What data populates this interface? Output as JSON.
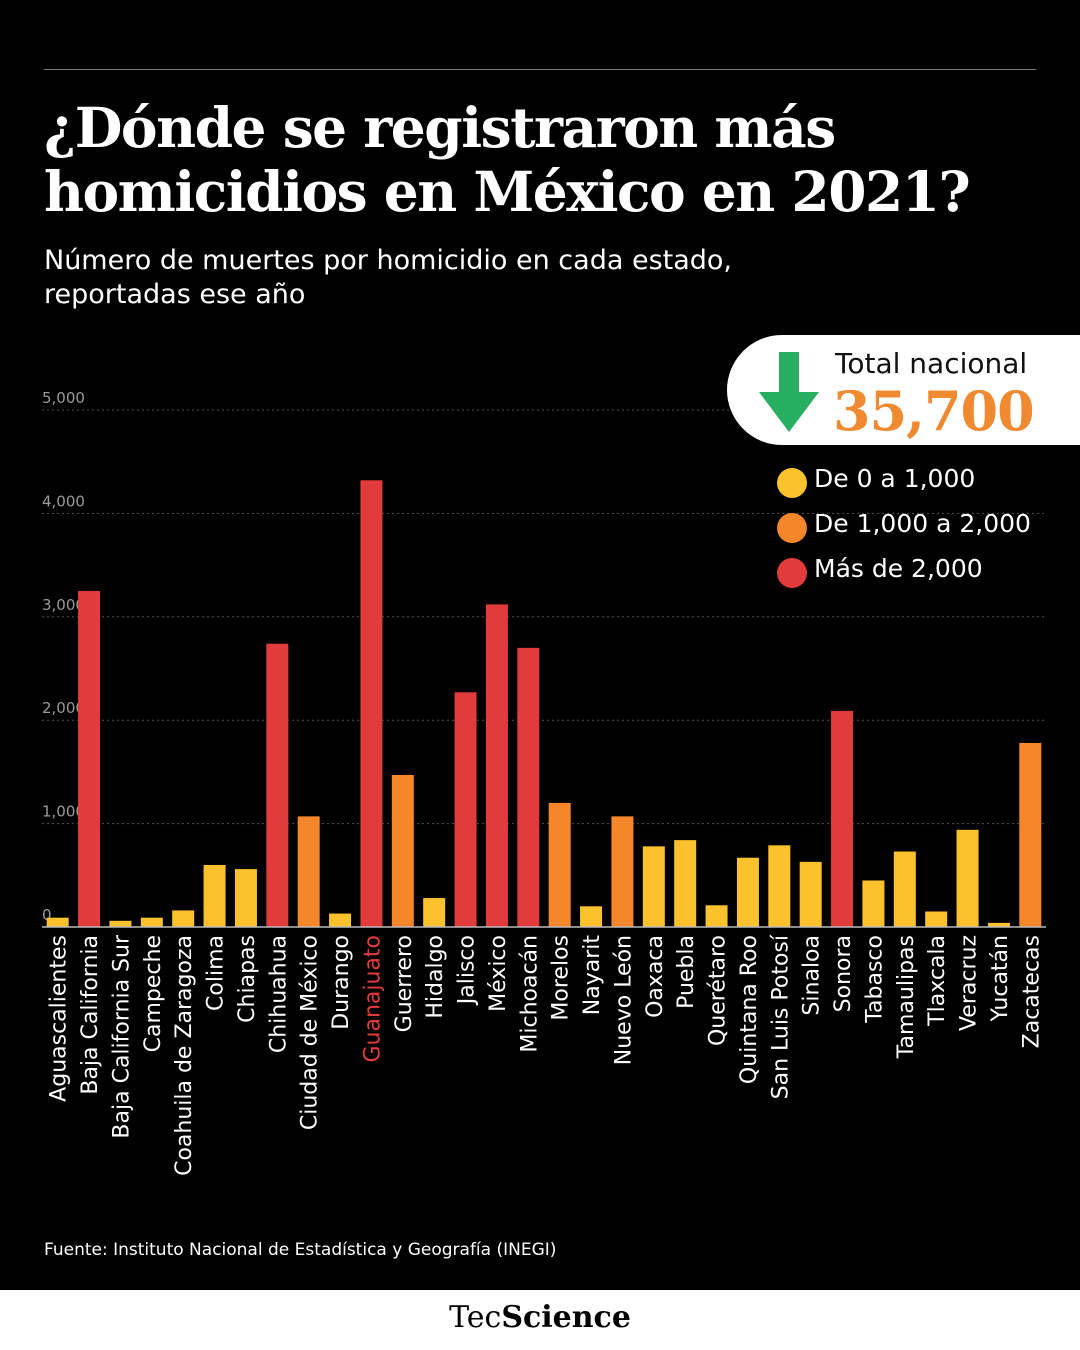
{
  "header": {
    "title": "¿Dónde se registraron más homicidios en México en 2021?",
    "subtitle": "Número de muertes por homicidio en cada estado, reportadas ese año"
  },
  "total": {
    "label": "Total nacional",
    "value": "35,700",
    "arrow_icon": "arrow-down-icon",
    "arrow_color": "#27ae60",
    "value_color": "#f08a30"
  },
  "legend": [
    {
      "label": "De 0 a 1,000",
      "color": "#fcc22e"
    },
    {
      "label": "De 1,000 a 2,000",
      "color": "#f6862a"
    },
    {
      "label": "Más de 2,000",
      "color": "#e23b3b"
    }
  ],
  "chart_data": {
    "type": "bar",
    "categories": [
      "Aguascalientes",
      "Baja California",
      "Baja California Sur",
      "Campeche",
      "Coahuila de Zaragoza",
      "Colima",
      "Chiapas",
      "Chihuahua",
      "Ciudad de México",
      "Durango",
      "Guanajuato",
      "Guerrero",
      "Hidalgo",
      "Jalisco",
      "México",
      "Michoacán",
      "Morelos",
      "Nayarit",
      "Nuevo León",
      "Oaxaca",
      "Puebla",
      "Querétaro",
      "Quintana Roo",
      "San Luis Potosí",
      "Sinaloa",
      "Sonora",
      "Tabasco",
      "Tamaulipas",
      "Tlaxcala",
      "Veracruz",
      "Yucatán",
      "Zacatecas"
    ],
    "values": [
      90,
      3250,
      60,
      90,
      160,
      600,
      560,
      2740,
      1070,
      130,
      4320,
      1470,
      280,
      2270,
      3120,
      2700,
      1200,
      200,
      1070,
      780,
      840,
      210,
      670,
      790,
      630,
      2090,
      450,
      730,
      150,
      940,
      40,
      1780
    ],
    "bar_colors": [
      "#fcc22e",
      "#e23b3b",
      "#fcc22e",
      "#fcc22e",
      "#fcc22e",
      "#fcc22e",
      "#fcc22e",
      "#e23b3b",
      "#f6862a",
      "#fcc22e",
      "#e23b3b",
      "#f6862a",
      "#fcc22e",
      "#e23b3b",
      "#e23b3b",
      "#e23b3b",
      "#f6862a",
      "#fcc22e",
      "#f6862a",
      "#fcc22e",
      "#fcc22e",
      "#fcc22e",
      "#fcc22e",
      "#fcc22e",
      "#fcc22e",
      "#e23b3b",
      "#fcc22e",
      "#fcc22e",
      "#fcc22e",
      "#fcc22e",
      "#fcc22e",
      "#f6862a"
    ],
    "highlight_category": "Guanajuato",
    "highlight_color": "#e23b3b",
    "yticks": [
      "0",
      "1,000",
      "2,000",
      "3,000",
      "4,000",
      "5,000"
    ],
    "ylim": [
      0,
      5000
    ],
    "grid": true
  },
  "footer": {
    "source": "Fuente: Instituto Nacional de Estadística y Geografía (INEGI)",
    "brand_a": "Tec",
    "brand_b": "Science"
  }
}
